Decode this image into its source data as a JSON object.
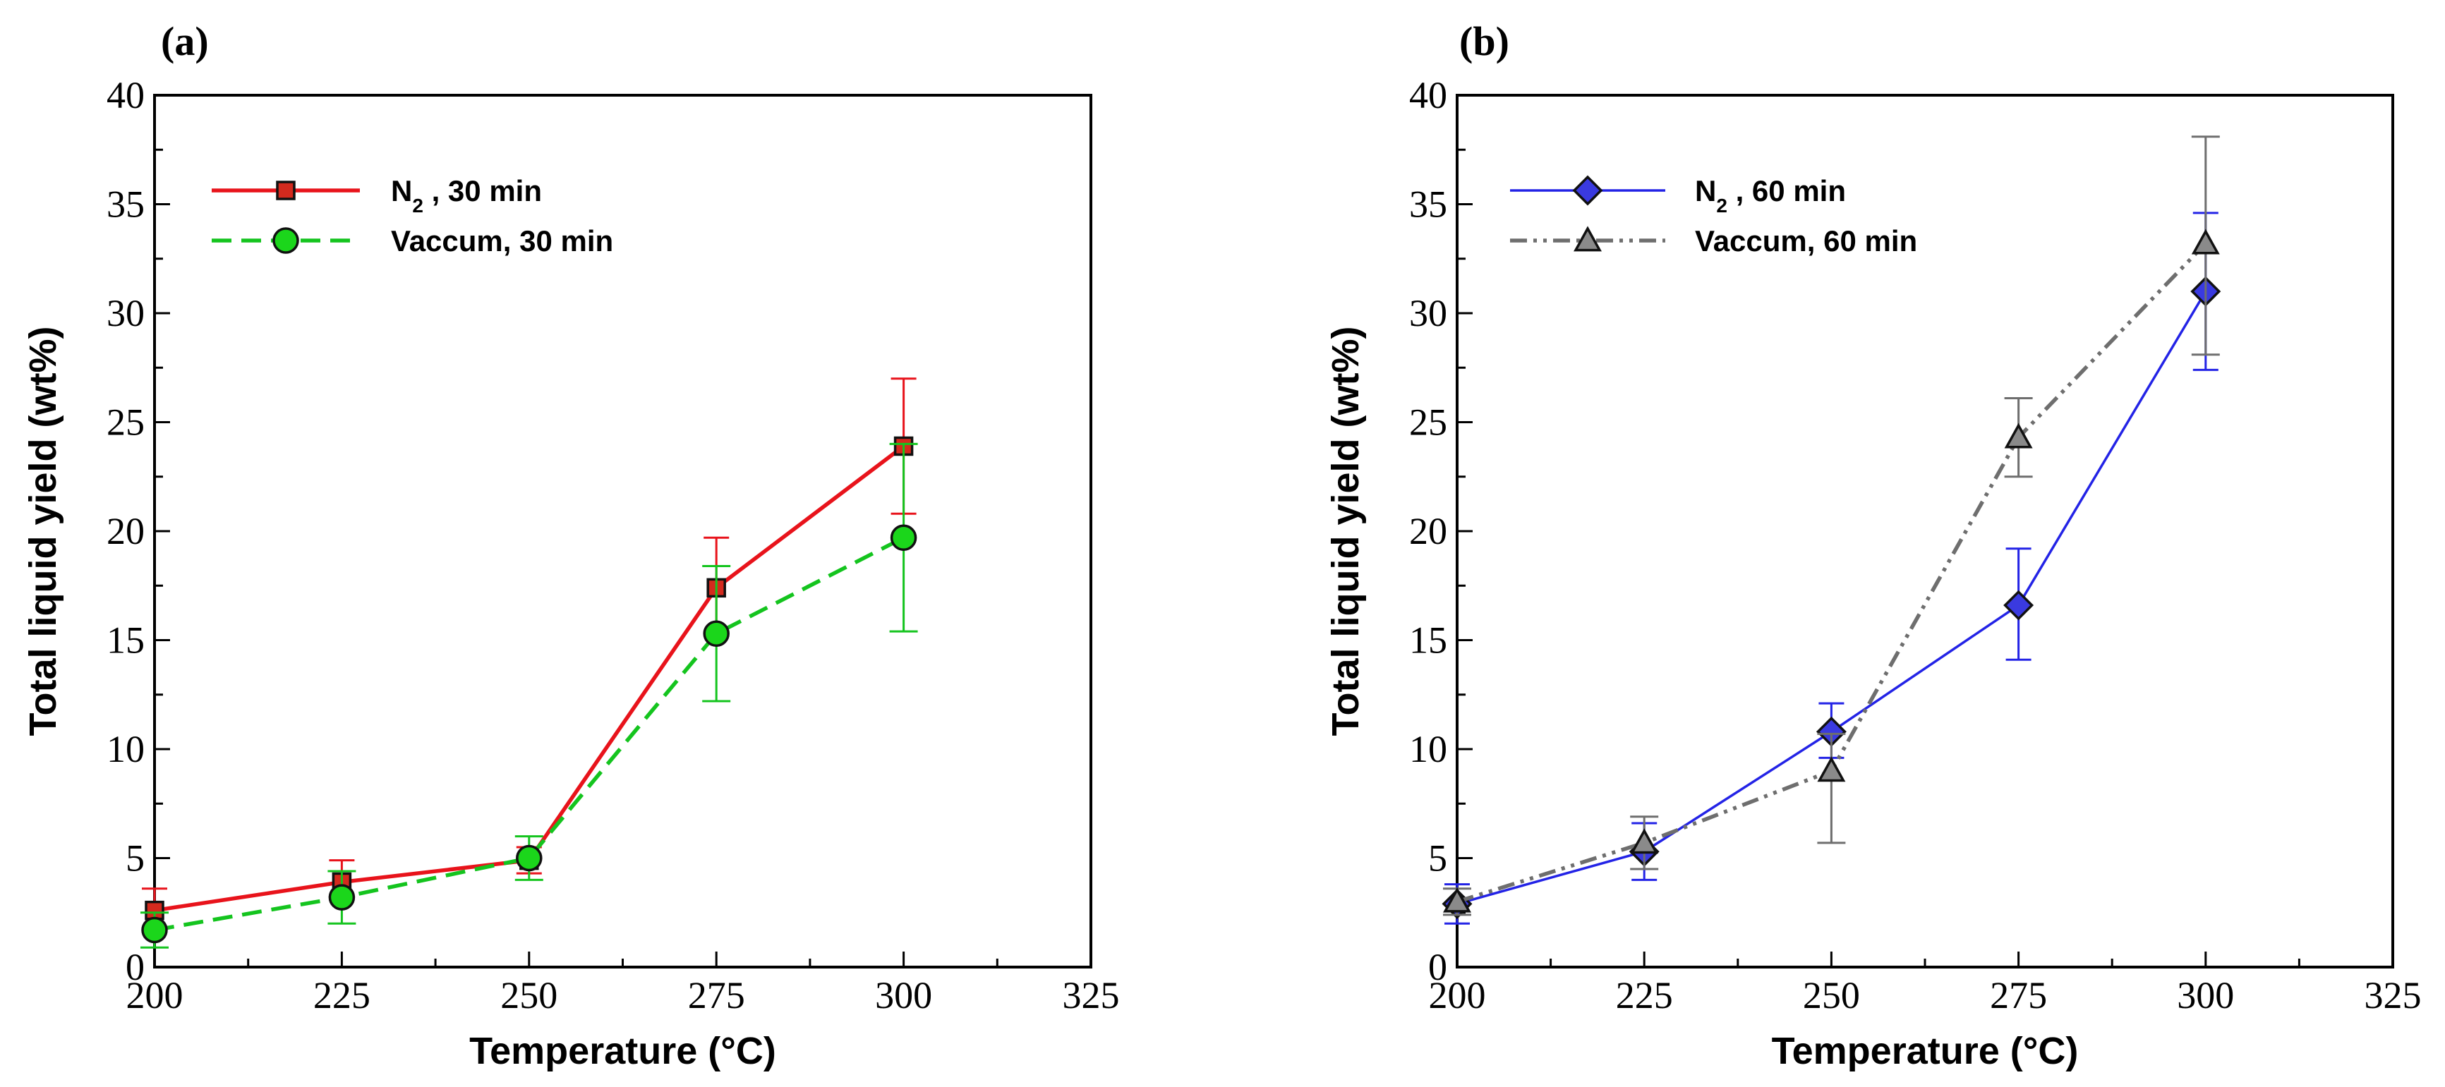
{
  "chart_data": [
    {
      "type": "line",
      "panel_label": "(a)",
      "xlabel": "Temperature (°C)",
      "ylabel": "Total liquid yield (wt%)",
      "xlim": [
        200,
        325
      ],
      "ylim": [
        0,
        40
      ],
      "xticks": [
        "200",
        "225",
        "250",
        "275",
        "300",
        "325"
      ],
      "yticks": [
        "0",
        "5",
        "10",
        "15",
        "20",
        "25",
        "30",
        "35",
        "40"
      ],
      "x": [
        200,
        225,
        250,
        275,
        300
      ],
      "legend_position": "top-left",
      "series": [
        {
          "name": "N₂ , 30 min",
          "label_main": "N",
          "label_sub": "2",
          "label_rest": " , 30 min",
          "color": "#e8131b",
          "marker_color": "#d42a1e",
          "marker": "square",
          "line_style": "solid",
          "values": [
            2.6,
            3.9,
            4.9,
            17.4,
            23.9
          ],
          "err_low": [
            1.6,
            3.1,
            4.3,
            15.2,
            20.8
          ],
          "err_high": [
            3.6,
            4.9,
            5.5,
            19.7,
            27.0
          ]
        },
        {
          "name": "Vaccum, 30 min",
          "label_main": "Vaccum, 30 min",
          "label_sub": "",
          "label_rest": "",
          "color": "#14c41e",
          "marker_color": "#1bd61b",
          "marker": "circle",
          "line_style": "dashed",
          "values": [
            1.7,
            3.2,
            5.0,
            15.3,
            19.7
          ],
          "err_low": [
            0.9,
            2.0,
            4.0,
            12.2,
            15.4
          ],
          "err_high": [
            2.5,
            4.4,
            6.0,
            18.4,
            24.0
          ]
        }
      ]
    },
    {
      "type": "line",
      "panel_label": "(b)",
      "xlabel": "Temperature (°C)",
      "ylabel": "Total liquid yield (wt%)",
      "xlim": [
        200,
        325
      ],
      "ylim": [
        0,
        40
      ],
      "xticks": [
        "200",
        "225",
        "250",
        "275",
        "300",
        "325"
      ],
      "yticks": [
        "0",
        "5",
        "10",
        "15",
        "20",
        "25",
        "30",
        "35",
        "40"
      ],
      "x": [
        200,
        225,
        250,
        275,
        300
      ],
      "legend_position": "top-left",
      "series": [
        {
          "name": "N₂ , 60 min",
          "label_main": "N",
          "label_sub": "2",
          "label_rest": " , 60 min",
          "color": "#2323e6",
          "marker_color": "#3a3ae0",
          "marker": "diamond",
          "line_style": "solid",
          "values": [
            2.9,
            5.3,
            10.8,
            16.6,
            31.0
          ],
          "err_low": [
            2.0,
            4.0,
            9.6,
            14.1,
            27.4
          ],
          "err_high": [
            3.8,
            6.6,
            12.1,
            19.2,
            34.6
          ]
        },
        {
          "name": "Vaccum, 60 min",
          "label_main": "Vaccum, 60 min",
          "label_sub": "",
          "label_rest": "",
          "color": "#6e6e6e",
          "marker_color": "#8a8a8a",
          "marker": "triangle",
          "line_style": "dashdotdot",
          "values": [
            3.0,
            5.7,
            9.0,
            24.3,
            33.2
          ],
          "err_low": [
            2.4,
            4.5,
            5.7,
            22.5,
            28.1
          ],
          "err_high": [
            3.6,
            6.9,
            10.7,
            26.1,
            38.1
          ]
        }
      ]
    }
  ]
}
